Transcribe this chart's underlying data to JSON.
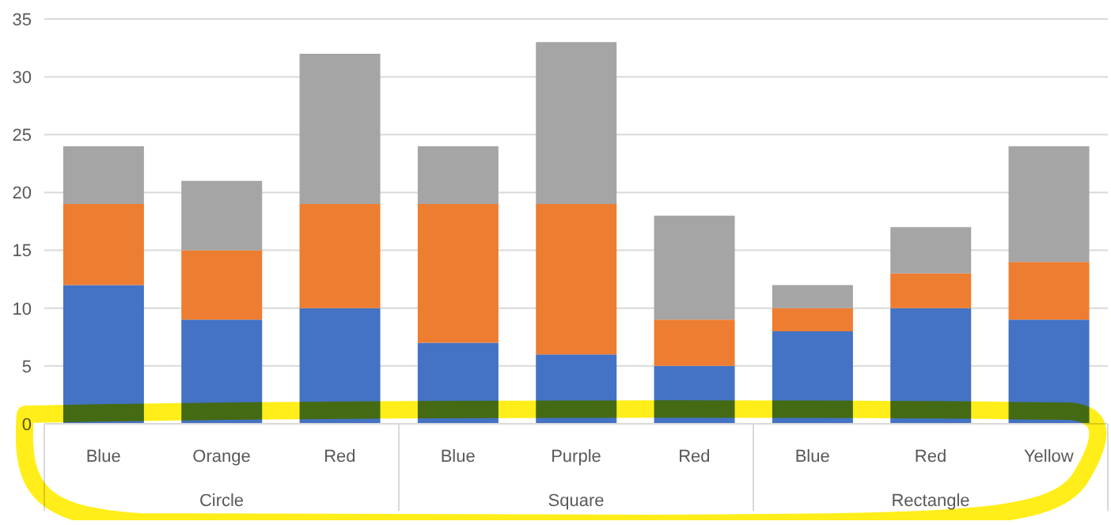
{
  "chart_data": {
    "type": "bar",
    "stacked": true,
    "categories": [
      "Blue",
      "Orange",
      "Red",
      "Blue",
      "Purple",
      "Red",
      "Blue",
      "Red",
      "Yellow"
    ],
    "series": [
      {
        "color": "#4472c4",
        "values": [
          12,
          9,
          10,
          7,
          6,
          5,
          8,
          10,
          9
        ]
      },
      {
        "color": "#ed7d31",
        "values": [
          7,
          6,
          9,
          12,
          13,
          4,
          2,
          3,
          5
        ]
      },
      {
        "color": "#a5a5a5",
        "values": [
          5,
          6,
          13,
          5,
          14,
          9,
          2,
          4,
          10
        ]
      }
    ],
    "annotations": [
      "Circle",
      "Square",
      "Rectangle"
    ],
    "ylim": [
      0,
      35
    ],
    "yticks": [
      0,
      5,
      10,
      15,
      20,
      25,
      30,
      35
    ],
    "grid": "y",
    "legend": false
  }
}
